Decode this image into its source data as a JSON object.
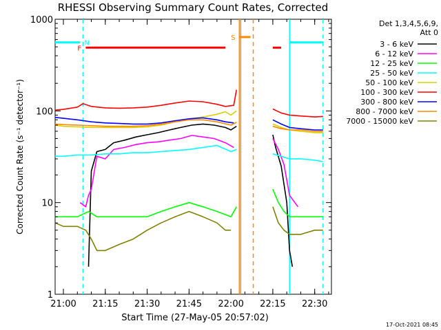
{
  "chart_data": {
    "type": "line",
    "title": "RHESSI Observing Summary Count Rates, Corrected",
    "xlabel": "Start Time (27-May-05 20:57:02)",
    "ylabel": "Corrected Count Rate (s⁻¹ detector⁻¹)",
    "y_scale": "log",
    "ylim": [
      1,
      1000
    ],
    "y_ticks": [
      1,
      10,
      100,
      1000
    ],
    "y_tick_labels": [
      "1",
      "10",
      "100",
      "1000"
    ],
    "xlim": [
      "20:57:02",
      "22:36:00"
    ],
    "x_tick_labels": [
      "21:00",
      "21:15",
      "21:30",
      "21:45",
      "22:00",
      "22:15",
      "22:30"
    ],
    "detectors_label": "Det 1,3,4,5,6,9,",
    "attenuator_label": "Att 0",
    "footer_date": "17-Oct-2021 08:45",
    "series": [
      {
        "name": "3 - 6 keV",
        "color": "#000000",
        "points": [
          [
            "21:09",
            2
          ],
          [
            "21:10",
            22
          ],
          [
            "21:12",
            36
          ],
          [
            "21:15",
            38
          ],
          [
            "21:18",
            45
          ],
          [
            "21:22",
            48
          ],
          [
            "21:26",
            52
          ],
          [
            "21:30",
            55
          ],
          [
            "21:34",
            58
          ],
          [
            "21:38",
            62
          ],
          [
            "21:42",
            66
          ],
          [
            "21:46",
            70
          ],
          [
            "21:50",
            72
          ],
          [
            "21:54",
            70
          ],
          [
            "21:58",
            66
          ],
          [
            "22:00",
            62
          ],
          [
            "22:02",
            68
          ]
        ]
      },
      {
        "name": "6 - 12 keV",
        "color": "#ff00ff",
        "points": [
          [
            "21:06",
            10
          ],
          [
            "21:08",
            9
          ],
          [
            "21:09",
            12
          ],
          [
            "21:10",
            14
          ],
          [
            "21:12",
            32
          ],
          [
            "21:15",
            30
          ],
          [
            "21:18",
            38
          ],
          [
            "21:22",
            40
          ],
          [
            "21:26",
            43
          ],
          [
            "21:30",
            45
          ],
          [
            "21:34",
            46
          ],
          [
            "21:38",
            48
          ],
          [
            "21:42",
            50
          ],
          [
            "21:46",
            54
          ],
          [
            "21:50",
            52
          ],
          [
            "21:54",
            50
          ],
          [
            "21:58",
            45
          ],
          [
            "22:01",
            40
          ]
        ]
      },
      {
        "name": "12 - 25 keV",
        "color": "#00ff00",
        "points": [
          [
            "20:57",
            7
          ],
          [
            "21:00",
            7
          ],
          [
            "21:05",
            7
          ],
          [
            "21:09",
            8
          ],
          [
            "21:12",
            7
          ],
          [
            "21:15",
            7
          ],
          [
            "21:20",
            7
          ],
          [
            "21:25",
            7
          ],
          [
            "21:30",
            7
          ],
          [
            "21:35",
            8
          ],
          [
            "21:40",
            9
          ],
          [
            "21:45",
            10
          ],
          [
            "21:50",
            9
          ],
          [
            "21:55",
            8
          ],
          [
            "22:00",
            7
          ],
          [
            "22:02",
            9
          ]
        ]
      },
      {
        "name": "25 - 50 keV",
        "color": "#00ffff",
        "points": [
          [
            "20:57",
            32
          ],
          [
            "21:00",
            32
          ],
          [
            "21:05",
            33
          ],
          [
            "21:10",
            33
          ],
          [
            "21:15",
            34
          ],
          [
            "21:20",
            34
          ],
          [
            "21:25",
            35
          ],
          [
            "21:30",
            35
          ],
          [
            "21:35",
            36
          ],
          [
            "21:40",
            37
          ],
          [
            "21:45",
            38
          ],
          [
            "21:50",
            40
          ],
          [
            "21:55",
            42
          ],
          [
            "22:00",
            36
          ],
          [
            "22:02",
            38
          ]
        ]
      },
      {
        "name": "50 - 100 keV",
        "color": "#ddcc00",
        "points": [
          [
            "20:57",
            70
          ],
          [
            "21:00",
            68
          ],
          [
            "21:05",
            67
          ],
          [
            "21:10",
            66
          ],
          [
            "21:15",
            66
          ],
          [
            "21:20",
            66
          ],
          [
            "21:25",
            66
          ],
          [
            "21:30",
            67
          ],
          [
            "21:35",
            70
          ],
          [
            "21:40",
            76
          ],
          [
            "21:45",
            82
          ],
          [
            "21:50",
            86
          ],
          [
            "21:55",
            92
          ],
          [
            "21:58",
            98
          ],
          [
            "22:00",
            90
          ],
          [
            "22:02",
            100
          ]
        ]
      },
      {
        "name": "100 - 300 keV",
        "color": "#ff0000",
        "points": [
          [
            "20:57",
            102
          ],
          [
            "21:00",
            104
          ],
          [
            "21:05",
            110
          ],
          [
            "21:07",
            120
          ],
          [
            "21:10",
            112
          ],
          [
            "21:15",
            108
          ],
          [
            "21:20",
            107
          ],
          [
            "21:25",
            108
          ],
          [
            "21:30",
            110
          ],
          [
            "21:35",
            115
          ],
          [
            "21:40",
            122
          ],
          [
            "21:45",
            128
          ],
          [
            "21:50",
            126
          ],
          [
            "21:55",
            118
          ],
          [
            "21:58",
            112
          ],
          [
            "22:01",
            115
          ],
          [
            "22:02",
            170
          ]
        ]
      },
      {
        "name": "300 - 800 keV",
        "color": "#0000ff",
        "points": [
          [
            "20:57",
            85
          ],
          [
            "21:00",
            83
          ],
          [
            "21:05",
            80
          ],
          [
            "21:10",
            76
          ],
          [
            "21:15",
            74
          ],
          [
            "21:20",
            73
          ],
          [
            "21:25",
            72
          ],
          [
            "21:30",
            72
          ],
          [
            "21:35",
            74
          ],
          [
            "21:40",
            78
          ],
          [
            "21:45",
            82
          ],
          [
            "21:50",
            84
          ],
          [
            "21:55",
            80
          ],
          [
            "21:58",
            76
          ],
          [
            "22:01",
            74
          ]
        ]
      },
      {
        "name": "800 - 7000 keV",
        "color": "#ff8800",
        "points": [
          [
            "20:57",
            72
          ],
          [
            "21:00",
            71
          ],
          [
            "21:05",
            70
          ],
          [
            "21:10",
            69
          ],
          [
            "21:15",
            68
          ],
          [
            "21:20",
            68
          ],
          [
            "21:25",
            68
          ],
          [
            "21:30",
            69
          ],
          [
            "21:35",
            72
          ],
          [
            "21:40",
            76
          ],
          [
            "21:45",
            80
          ],
          [
            "21:50",
            80
          ],
          [
            "21:55",
            76
          ],
          [
            "22:00",
            70
          ],
          [
            "22:02",
            75
          ]
        ]
      },
      {
        "name": "7000 - 15000 keV",
        "color": "#808000",
        "points": [
          [
            "20:57",
            6
          ],
          [
            "21:00",
            5.5
          ],
          [
            "21:05",
            5.5
          ],
          [
            "21:08",
            5
          ],
          [
            "21:10",
            4
          ],
          [
            "21:12",
            3
          ],
          [
            "21:15",
            3
          ],
          [
            "21:20",
            3.5
          ],
          [
            "21:25",
            4
          ],
          [
            "21:30",
            5
          ],
          [
            "21:35",
            6
          ],
          [
            "21:40",
            7
          ],
          [
            "21:45",
            8
          ],
          [
            "21:50",
            7
          ],
          [
            "21:55",
            6
          ],
          [
            "21:58",
            5
          ],
          [
            "22:00",
            5
          ]
        ]
      }
    ],
    "series_after_gap": [
      {
        "name": "3 - 6 keV",
        "points": [
          [
            "22:15",
            55
          ],
          [
            "22:16",
            40
          ],
          [
            "22:18",
            25
          ],
          [
            "22:20",
            10
          ],
          [
            "22:21",
            3
          ],
          [
            "22:22",
            2
          ]
        ]
      },
      {
        "name": "6 - 12 keV",
        "points": [
          [
            "22:15",
            50
          ],
          [
            "22:17",
            38
          ],
          [
            "22:19",
            26
          ],
          [
            "22:21",
            12
          ],
          [
            "22:24",
            9
          ]
        ]
      },
      {
        "name": "12 - 25 keV",
        "points": [
          [
            "22:15",
            14
          ],
          [
            "22:17",
            10
          ],
          [
            "22:19",
            8
          ],
          [
            "22:21",
            7
          ],
          [
            "22:25",
            7
          ],
          [
            "22:30",
            7
          ],
          [
            "22:33",
            7
          ]
        ]
      },
      {
        "name": "25 - 50 keV",
        "points": [
          [
            "22:15",
            34
          ],
          [
            "22:18",
            32
          ],
          [
            "22:21",
            30
          ],
          [
            "22:25",
            30
          ],
          [
            "22:30",
            29
          ],
          [
            "22:33",
            28
          ]
        ]
      },
      {
        "name": "50 - 100 keV",
        "points": [
          [
            "22:15",
            72
          ],
          [
            "22:18",
            66
          ],
          [
            "22:21",
            62
          ],
          [
            "22:25",
            60
          ],
          [
            "22:30",
            58
          ],
          [
            "22:33",
            58
          ]
        ]
      },
      {
        "name": "100 - 300 keV",
        "points": [
          [
            "22:15",
            105
          ],
          [
            "22:18",
            95
          ],
          [
            "22:21",
            90
          ],
          [
            "22:25",
            88
          ],
          [
            "22:30",
            86
          ],
          [
            "22:33",
            87
          ]
        ]
      },
      {
        "name": "300 - 800 keV",
        "points": [
          [
            "22:15",
            80
          ],
          [
            "22:18",
            72
          ],
          [
            "22:21",
            66
          ],
          [
            "22:25",
            64
          ],
          [
            "22:30",
            62
          ],
          [
            "22:33",
            62
          ]
        ]
      },
      {
        "name": "800 - 7000 keV",
        "points": [
          [
            "22:15",
            68
          ],
          [
            "22:18",
            64
          ],
          [
            "22:21",
            62
          ],
          [
            "22:25",
            62
          ],
          [
            "22:30",
            60
          ],
          [
            "22:33",
            60
          ]
        ]
      },
      {
        "name": "7000 - 15000 keV",
        "points": [
          [
            "22:15",
            9
          ],
          [
            "22:17",
            6
          ],
          [
            "22:19",
            5
          ],
          [
            "22:21",
            4.5
          ],
          [
            "22:25",
            4.5
          ],
          [
            "22:30",
            5
          ],
          [
            "22:33",
            5
          ]
        ]
      }
    ],
    "flag_bars": [
      {
        "label": "N",
        "color": "#00ffff",
        "y": 560,
        "segments": [
          [
            "20:57",
            "21:06"
          ],
          [
            "22:21",
            "22:33"
          ]
        ]
      },
      {
        "label": "F",
        "color": "#ff0000",
        "y": 490,
        "segments": [
          [
            "21:08",
            "21:58"
          ],
          [
            "22:15",
            "22:18"
          ]
        ]
      },
      {
        "label": "S",
        "color": "#ff8800",
        "y": 640,
        "segments": [
          [
            "22:03",
            "22:07"
          ]
        ]
      }
    ],
    "vertical_markers": [
      {
        "color": "#00ffff",
        "style": "dashed",
        "x": "21:07"
      },
      {
        "color": "#ff8800",
        "style": "solid",
        "x": "22:03"
      },
      {
        "color": "#ff8800",
        "style": "solid",
        "x": "22:03:30"
      },
      {
        "color": "#ff8800",
        "style": "dashed",
        "x": "22:08"
      },
      {
        "color": "#00ffff",
        "style": "solid",
        "x": "22:21"
      },
      {
        "color": "#00ffff",
        "style": "dashed",
        "x": "22:33"
      }
    ]
  }
}
